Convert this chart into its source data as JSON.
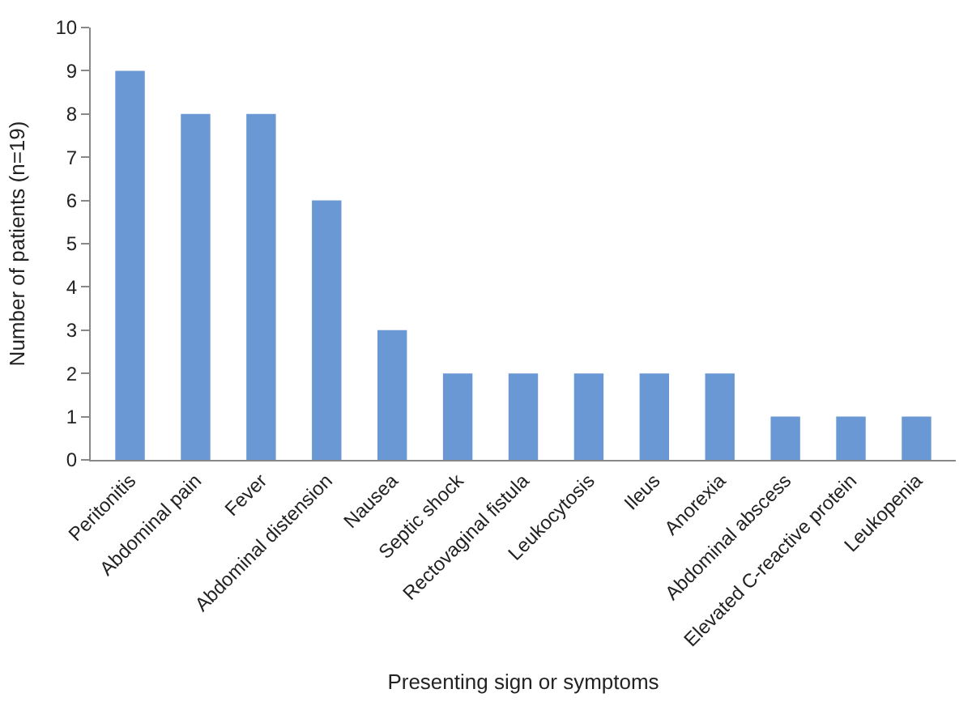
{
  "chart_data": {
    "type": "bar",
    "xlabel": "Presenting sign or symptoms",
    "ylabel": "Number of patients (n=19)",
    "categories": [
      "Peritonitis",
      "Abdominal pain",
      "Fever",
      "Abdominal distension",
      "Nausea",
      "Septic shock",
      "Rectovaginal fistula",
      "Leukocytosis",
      "Ileus",
      "Anorexia",
      "Abdominal abscess",
      "Elevated C-reactive protein",
      "Leukopenia"
    ],
    "values": [
      9,
      8,
      8,
      6,
      3,
      2,
      2,
      2,
      2,
      2,
      1,
      1,
      1
    ],
    "color": "#6a98d4",
    "ylim": [
      0,
      10
    ],
    "yticks": [
      0,
      1,
      2,
      3,
      4,
      5,
      6,
      7,
      8,
      9,
      10
    ]
  }
}
